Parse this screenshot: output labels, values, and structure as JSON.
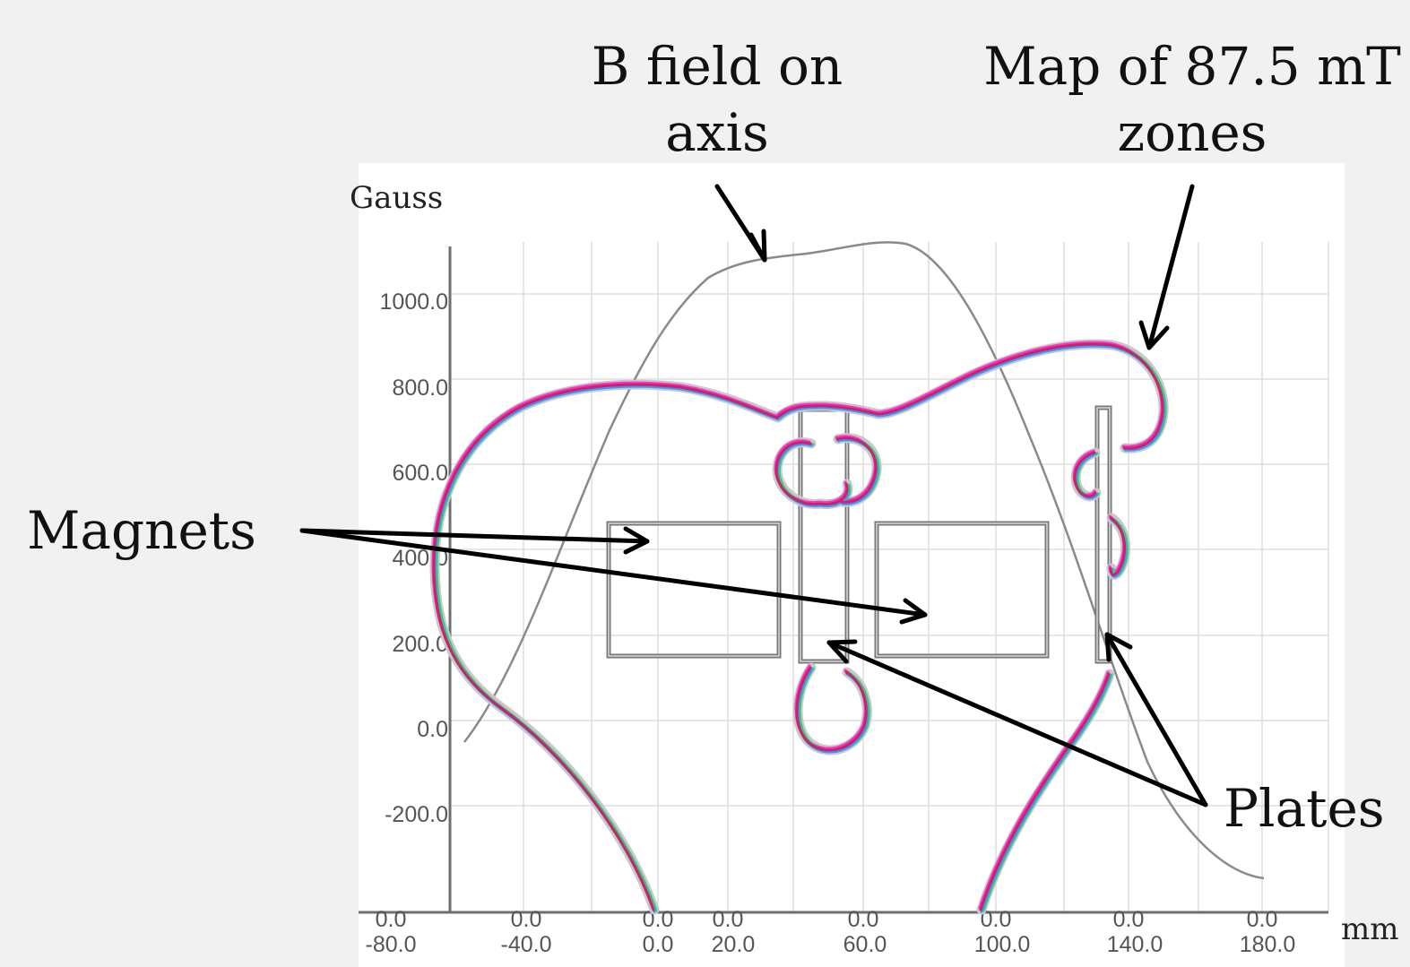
{
  "annotations": {
    "b_field": [
      "B field on",
      "axis"
    ],
    "zones": [
      "Map of 87.5 mT",
      "zones"
    ],
    "magnets": "Magnets",
    "plates": "Plates"
  },
  "axes": {
    "y_unit": "Gauss",
    "x_unit": "mm",
    "y_ticks": [
      "1000.0",
      "800.0",
      "600.0",
      "400.0",
      "200.0",
      "0.0",
      "-200.0"
    ],
    "x_ticks": [
      [
        "0.0",
        "-80.0"
      ],
      [
        "0.0",
        "-40.0"
      ],
      [
        "0.0",
        "0.0"
      ],
      [
        "0.0",
        "20.0"
      ],
      [
        "0.0",
        "60.0"
      ],
      [
        "0.0",
        "100.0"
      ],
      [
        "0.0",
        "140.0"
      ],
      [
        "0.0",
        "180.0"
      ]
    ]
  },
  "colors": {
    "background": "#f1f1f1",
    "plot_area": "#ffffff",
    "grid": "#dddddd",
    "axis": "#6e6e6e",
    "curve": "#8a8a8a",
    "arrow": "#000000",
    "contour_layers": [
      "#ff33cc",
      "#33cc77",
      "#3399ff",
      "#cc2266"
    ]
  }
}
